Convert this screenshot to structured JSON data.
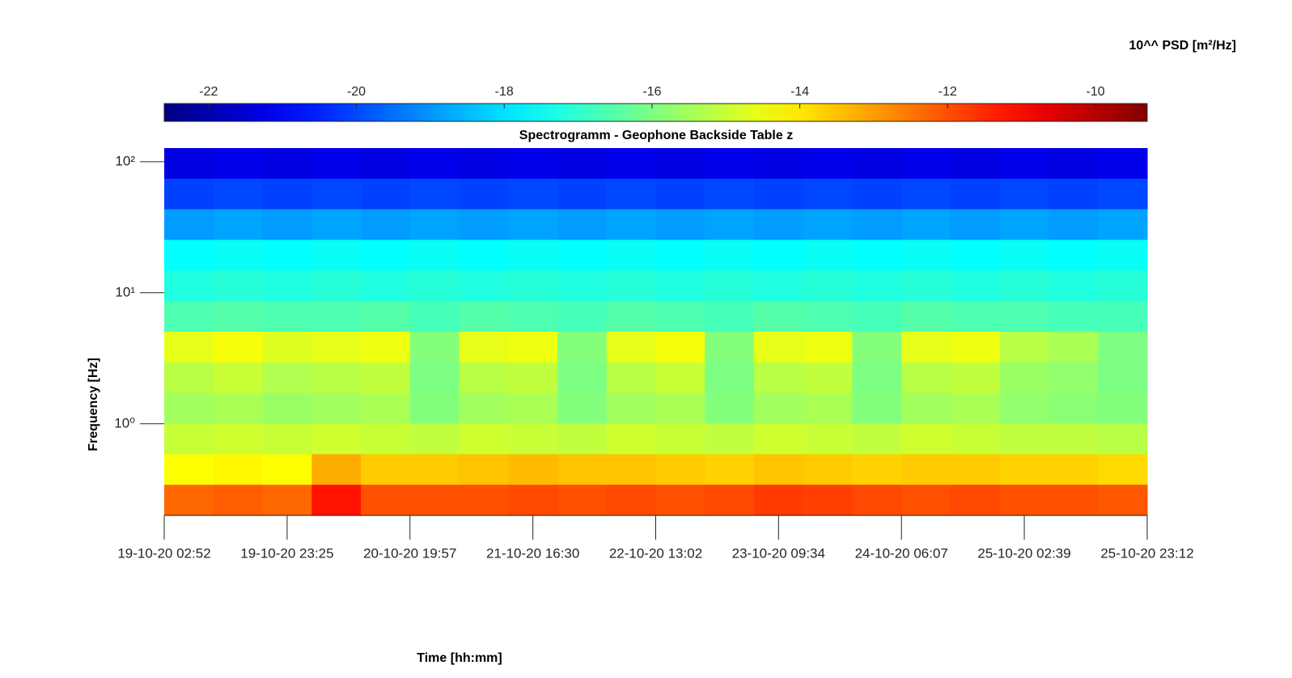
{
  "chart_data": {
    "type": "heatmap",
    "title": "Spectrogramm - Geophone Backside Table z",
    "xlabel": "Time [hh:mm]",
    "ylabel": "Frequency [Hz]",
    "colorbar_label": "10^^ PSD [m²/Hz]",
    "colormap": "jet",
    "clim": [
      -22.6,
      -9.3
    ],
    "cticks": [
      -22,
      -20,
      -18,
      -16,
      -14,
      -12,
      -10
    ],
    "xlim": [
      "19-10-20 02:52",
      "25-10-20 23:12"
    ],
    "xticks": [
      "19-10-20 02:52",
      "19-10-20 23:25",
      "20-10-20 19:57",
      "21-10-20 16:30",
      "22-10-20 13:02",
      "23-10-20 09:34",
      "24-10-20 06:07",
      "25-10-20 02:39",
      "25-10-20 23:12"
    ],
    "ylim": [
      0.2,
      127
    ],
    "yscale": "log",
    "yticks": [
      {
        "value": 1,
        "label": "10⁰"
      },
      {
        "value": 10,
        "label": "10¹"
      },
      {
        "value": 100,
        "label": "10²"
      }
    ],
    "z": [
      [
        -21.3,
        -21.2,
        -21.3,
        -21.2,
        -21.3,
        -21.2,
        -21.3,
        -21.2,
        -21.3,
        -21.2,
        -21.3,
        -21.2,
        -21.3,
        -21.2,
        -21.3,
        -21.2,
        -21.3,
        -21.2,
        -21.3,
        -21.2
      ],
      [
        -20.1,
        -20.0,
        -20.1,
        -20.0,
        -20.1,
        -20.0,
        -20.1,
        -20.0,
        -20.1,
        -20.0,
        -20.1,
        -20.0,
        -20.1,
        -20.0,
        -20.1,
        -20.0,
        -20.1,
        -20.0,
        -20.1,
        -20.0
      ],
      [
        -18.9,
        -18.8,
        -18.9,
        -18.8,
        -18.9,
        -18.8,
        -18.9,
        -18.8,
        -18.9,
        -18.8,
        -18.9,
        -18.8,
        -18.9,
        -18.8,
        -18.9,
        -18.8,
        -18.9,
        -18.8,
        -18.9,
        -18.8
      ],
      [
        -17.6,
        -17.5,
        -17.6,
        -17.5,
        -17.6,
        -17.5,
        -17.6,
        -17.5,
        -17.6,
        -17.5,
        -17.6,
        -17.5,
        -17.6,
        -17.5,
        -17.6,
        -17.5,
        -17.6,
        -17.5,
        -17.6,
        -17.5
      ],
      [
        -17.2,
        -17.1,
        -17.2,
        -17.1,
        -17.2,
        -17.1,
        -17.2,
        -17.1,
        -17.2,
        -17.1,
        -17.2,
        -17.1,
        -17.2,
        -17.1,
        -17.2,
        -17.1,
        -17.2,
        -17.1,
        -17.2,
        -17.1
      ],
      [
        -16.6,
        -16.5,
        -16.6,
        -16.6,
        -16.5,
        -16.7,
        -16.5,
        -16.6,
        -16.7,
        -16.5,
        -16.6,
        -16.7,
        -16.5,
        -16.6,
        -16.7,
        -16.5,
        -16.6,
        -16.6,
        -16.7,
        -16.7
      ],
      [
        -14.6,
        -14.4,
        -14.7,
        -14.6,
        -14.5,
        -15.9,
        -14.6,
        -14.5,
        -15.9,
        -14.6,
        -14.4,
        -15.9,
        -14.6,
        -14.5,
        -15.9,
        -14.6,
        -14.5,
        -15.2,
        -15.4,
        -16.0
      ],
      [
        -15.2,
        -15.0,
        -15.3,
        -15.2,
        -15.1,
        -16.0,
        -15.2,
        -15.1,
        -16.0,
        -15.2,
        -15.0,
        -16.0,
        -15.2,
        -15.1,
        -16.0,
        -15.2,
        -15.1,
        -15.6,
        -15.7,
        -16.0
      ],
      [
        -15.5,
        -15.4,
        -15.6,
        -15.5,
        -15.4,
        -15.9,
        -15.5,
        -15.4,
        -15.9,
        -15.5,
        -15.4,
        -15.9,
        -15.5,
        -15.4,
        -15.9,
        -15.5,
        -15.4,
        -15.7,
        -15.8,
        -15.9
      ],
      [
        -15.0,
        -14.9,
        -15.0,
        -14.9,
        -15.0,
        -15.1,
        -14.9,
        -15.0,
        -15.1,
        -14.9,
        -15.0,
        -15.1,
        -14.9,
        -15.0,
        -15.1,
        -14.9,
        -15.0,
        -15.1,
        -15.1,
        -15.2
      ],
      [
        -14.3,
        -14.2,
        -14.3,
        -13.2,
        -13.6,
        -13.6,
        -13.5,
        -13.4,
        -13.5,
        -13.5,
        -13.6,
        -13.7,
        -13.5,
        -13.6,
        -13.7,
        -13.6,
        -13.6,
        -13.7,
        -13.7,
        -13.8
      ],
      [
        -12.3,
        -12.2,
        -12.3,
        -11.2,
        -12.0,
        -12.0,
        -12.0,
        -11.9,
        -12.0,
        -11.9,
        -12.0,
        -11.9,
        -11.7,
        -11.8,
        -11.9,
        -12.0,
        -11.9,
        -12.0,
        -12.0,
        -12.1
      ]
    ]
  }
}
